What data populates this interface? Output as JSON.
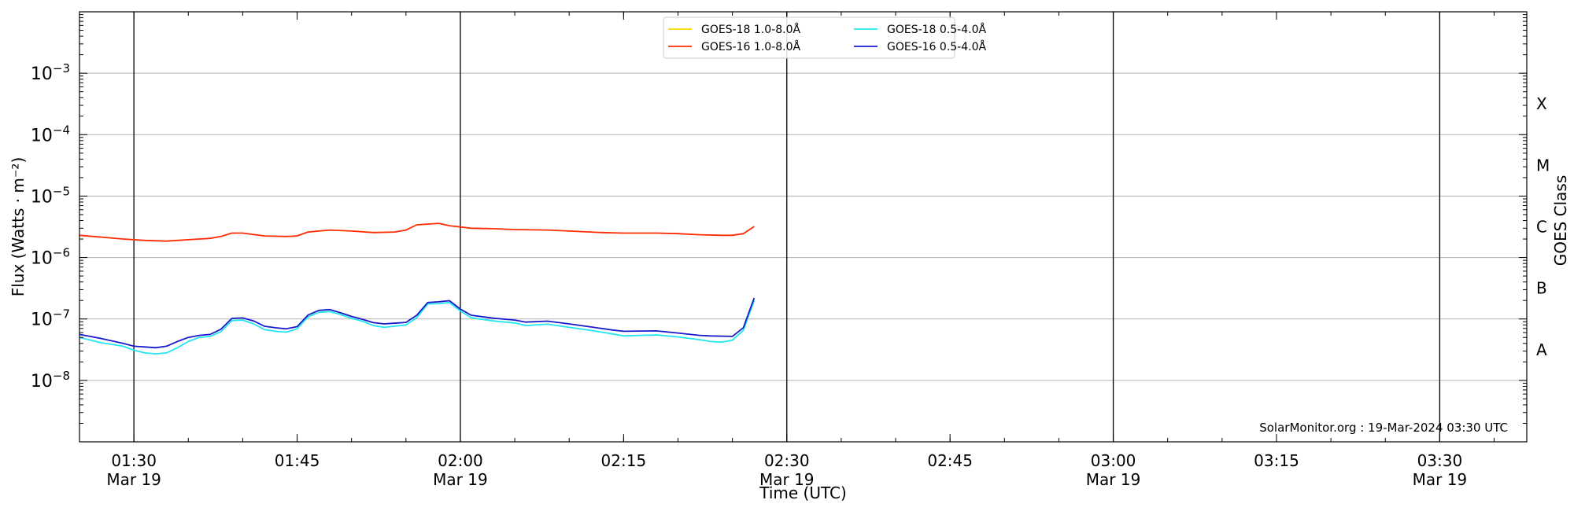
{
  "chart_data": {
    "type": "line",
    "xlabel": "Time (UTC)",
    "ylabel": "Flux (Watts · m⁻²)",
    "ylabel_right": "GOES Class",
    "yscale": "log",
    "ylim": [
      1e-09,
      0.01
    ],
    "xlim": [
      "2024-03-19 01:25",
      "2024-03-19 03:38"
    ],
    "grid": "horizontal at decades",
    "legend_position": "top-center",
    "yticks": [
      {
        "value": 1e-08,
        "base": "10",
        "exp": "−8"
      },
      {
        "value": 1e-07,
        "base": "10",
        "exp": "−7"
      },
      {
        "value": 1e-06,
        "base": "10",
        "exp": "−6"
      },
      {
        "value": 1e-05,
        "base": "10",
        "exp": "−5"
      },
      {
        "value": 0.0001,
        "base": "10",
        "exp": "−4"
      },
      {
        "value": 0.001,
        "base": "10",
        "exp": "−3"
      }
    ],
    "xticks": [
      {
        "time": "01:30",
        "line1": "01:30",
        "line2": "Mar 19",
        "vline": true
      },
      {
        "time": "01:45",
        "line1": "01:45",
        "line2": "",
        "vline": false
      },
      {
        "time": "02:00",
        "line1": "02:00",
        "line2": "Mar 19",
        "vline": true
      },
      {
        "time": "02:15",
        "line1": "02:15",
        "line2": "",
        "vline": false
      },
      {
        "time": "02:30",
        "line1": "02:30",
        "line2": "Mar 19",
        "vline": true
      },
      {
        "time": "02:45",
        "line1": "02:45",
        "line2": "",
        "vline": false
      },
      {
        "time": "03:00",
        "line1": "03:00",
        "line2": "Mar 19",
        "vline": true
      },
      {
        "time": "03:15",
        "line1": "03:15",
        "line2": "",
        "vline": false
      },
      {
        "time": "03:30",
        "line1": "03:30",
        "line2": "Mar 19",
        "vline": true
      }
    ],
    "class_labels": [
      {
        "label": "A",
        "flux": 1e-08
      },
      {
        "label": "B",
        "flux": 1e-07
      },
      {
        "label": "C",
        "flux": 1e-06
      },
      {
        "label": "M",
        "flux": 1e-05
      },
      {
        "label": "X",
        "flux": 0.0001
      }
    ],
    "annotation": "SolarMonitor.org : 19-Mar-2024 03:30 UTC",
    "series": [
      {
        "name": "GOES-18 1.0-8.0Å",
        "color": "#ffd700",
        "points": []
      },
      {
        "name": "GOES-16 1.0-8.0Å",
        "color": "#ff2a00",
        "points": [
          [
            "01:25",
            2.3e-06
          ],
          [
            "01:27",
            2.15e-06
          ],
          [
            "01:29",
            2e-06
          ],
          [
            "01:31",
            1.9e-06
          ],
          [
            "01:33",
            1.85e-06
          ],
          [
            "01:35",
            1.95e-06
          ],
          [
            "01:37",
            2.05e-06
          ],
          [
            "01:38",
            2.2e-06
          ],
          [
            "01:39",
            2.5e-06
          ],
          [
            "01:40",
            2.5e-06
          ],
          [
            "01:42",
            2.25e-06
          ],
          [
            "01:44",
            2.2e-06
          ],
          [
            "01:45",
            2.25e-06
          ],
          [
            "01:46",
            2.6e-06
          ],
          [
            "01:48",
            2.8e-06
          ],
          [
            "01:50",
            2.7e-06
          ],
          [
            "01:52",
            2.55e-06
          ],
          [
            "01:54",
            2.6e-06
          ],
          [
            "01:55",
            2.8e-06
          ],
          [
            "01:56",
            3.4e-06
          ],
          [
            "01:58",
            3.6e-06
          ],
          [
            "01:59",
            3.3e-06
          ],
          [
            "02:01",
            3e-06
          ],
          [
            "02:03",
            2.95e-06
          ],
          [
            "02:05",
            2.85e-06
          ],
          [
            "02:08",
            2.8e-06
          ],
          [
            "02:10",
            2.7e-06
          ],
          [
            "02:13",
            2.55e-06
          ],
          [
            "02:15",
            2.5e-06
          ],
          [
            "02:18",
            2.5e-06
          ],
          [
            "02:20",
            2.45e-06
          ],
          [
            "02:22",
            2.35e-06
          ],
          [
            "02:24",
            2.3e-06
          ],
          [
            "02:25",
            2.3e-06
          ],
          [
            "02:26",
            2.45e-06
          ],
          [
            "02:27",
            3.2e-06
          ]
        ]
      },
      {
        "name": "GOES-18 0.5-4.0Å",
        "color": "#22e6f0",
        "points": [
          [
            "01:25",
            5e-08
          ],
          [
            "01:27",
            4.1e-08
          ],
          [
            "01:29",
            3.6e-08
          ],
          [
            "01:30",
            3.1e-08
          ],
          [
            "01:31",
            2.8e-08
          ],
          [
            "01:32",
            2.7e-08
          ],
          [
            "01:33",
            2.8e-08
          ],
          [
            "01:34",
            3.4e-08
          ],
          [
            "01:35",
            4.3e-08
          ],
          [
            "01:36",
            5e-08
          ],
          [
            "01:37",
            5.2e-08
          ],
          [
            "01:38",
            6.2e-08
          ],
          [
            "01:39",
            9.4e-08
          ],
          [
            "01:40",
            9.6e-08
          ],
          [
            "01:41",
            8.3e-08
          ],
          [
            "01:42",
            6.7e-08
          ],
          [
            "01:43",
            6.3e-08
          ],
          [
            "01:44",
            6.1e-08
          ],
          [
            "01:45",
            6.9e-08
          ],
          [
            "01:46",
            1.08e-07
          ],
          [
            "01:47",
            1.28e-07
          ],
          [
            "01:48",
            1.32e-07
          ],
          [
            "01:49",
            1.18e-07
          ],
          [
            "01:50",
            1.02e-07
          ],
          [
            "01:51",
            9.2e-08
          ],
          [
            "01:52",
            7.8e-08
          ],
          [
            "01:53",
            7.3e-08
          ],
          [
            "01:55",
            8e-08
          ],
          [
            "01:56",
            1.05e-07
          ],
          [
            "01:57",
            1.75e-07
          ],
          [
            "01:58",
            1.78e-07
          ],
          [
            "01:59",
            1.85e-07
          ],
          [
            "02:00",
            1.35e-07
          ],
          [
            "02:01",
            1.05e-07
          ],
          [
            "02:03",
            9.3e-08
          ],
          [
            "02:05",
            8.6e-08
          ],
          [
            "02:06",
            7.8e-08
          ],
          [
            "02:08",
            8.2e-08
          ],
          [
            "02:10",
            7.3e-08
          ],
          [
            "02:12",
            6.5e-08
          ],
          [
            "02:14",
            5.7e-08
          ],
          [
            "02:15",
            5.3e-08
          ],
          [
            "02:18",
            5.5e-08
          ],
          [
            "02:20",
            5.1e-08
          ],
          [
            "02:22",
            4.6e-08
          ],
          [
            "02:23",
            4.3e-08
          ],
          [
            "02:24",
            4.2e-08
          ],
          [
            "02:25",
            4.5e-08
          ],
          [
            "02:26",
            6.5e-08
          ],
          [
            "02:27",
            2e-07
          ]
        ]
      },
      {
        "name": "GOES-16 0.5-4.0Å",
        "color": "#1a1acc",
        "points": [
          [
            "01:25",
            5.6e-08
          ],
          [
            "01:27",
            4.8e-08
          ],
          [
            "01:29",
            4e-08
          ],
          [
            "01:30",
            3.6e-08
          ],
          [
            "01:31",
            3.5e-08
          ],
          [
            "01:32",
            3.4e-08
          ],
          [
            "01:33",
            3.6e-08
          ],
          [
            "01:34",
            4.3e-08
          ],
          [
            "01:35",
            5e-08
          ],
          [
            "01:36",
            5.4e-08
          ],
          [
            "01:37",
            5.6e-08
          ],
          [
            "01:38",
            6.8e-08
          ],
          [
            "01:39",
            1.02e-07
          ],
          [
            "01:40",
            1.04e-07
          ],
          [
            "01:41",
            9.3e-08
          ],
          [
            "01:42",
            7.6e-08
          ],
          [
            "01:43",
            7.2e-08
          ],
          [
            "01:44",
            6.9e-08
          ],
          [
            "01:45",
            7.5e-08
          ],
          [
            "01:46",
            1.16e-07
          ],
          [
            "01:47",
            1.38e-07
          ],
          [
            "01:48",
            1.42e-07
          ],
          [
            "01:49",
            1.26e-07
          ],
          [
            "01:50",
            1.1e-07
          ],
          [
            "01:51",
            9.9e-08
          ],
          [
            "01:52",
            8.7e-08
          ],
          [
            "01:53",
            8.3e-08
          ],
          [
            "01:55",
            8.8e-08
          ],
          [
            "01:56",
            1.15e-07
          ],
          [
            "01:57",
            1.85e-07
          ],
          [
            "01:58",
            1.9e-07
          ],
          [
            "01:59",
            1.98e-07
          ],
          [
            "02:00",
            1.45e-07
          ],
          [
            "02:01",
            1.15e-07
          ],
          [
            "02:03",
            1.03e-07
          ],
          [
            "02:05",
            9.6e-08
          ],
          [
            "02:06",
            8.9e-08
          ],
          [
            "02:08",
            9.2e-08
          ],
          [
            "02:10",
            8.3e-08
          ],
          [
            "02:12",
            7.4e-08
          ],
          [
            "02:14",
            6.6e-08
          ],
          [
            "02:15",
            6.3e-08
          ],
          [
            "02:18",
            6.4e-08
          ],
          [
            "02:20",
            5.9e-08
          ],
          [
            "02:22",
            5.4e-08
          ],
          [
            "02:23",
            5.3e-08
          ],
          [
            "02:25",
            5.2e-08
          ],
          [
            "02:26",
            7.2e-08
          ],
          [
            "02:27",
            2.2e-07
          ]
        ]
      }
    ]
  }
}
